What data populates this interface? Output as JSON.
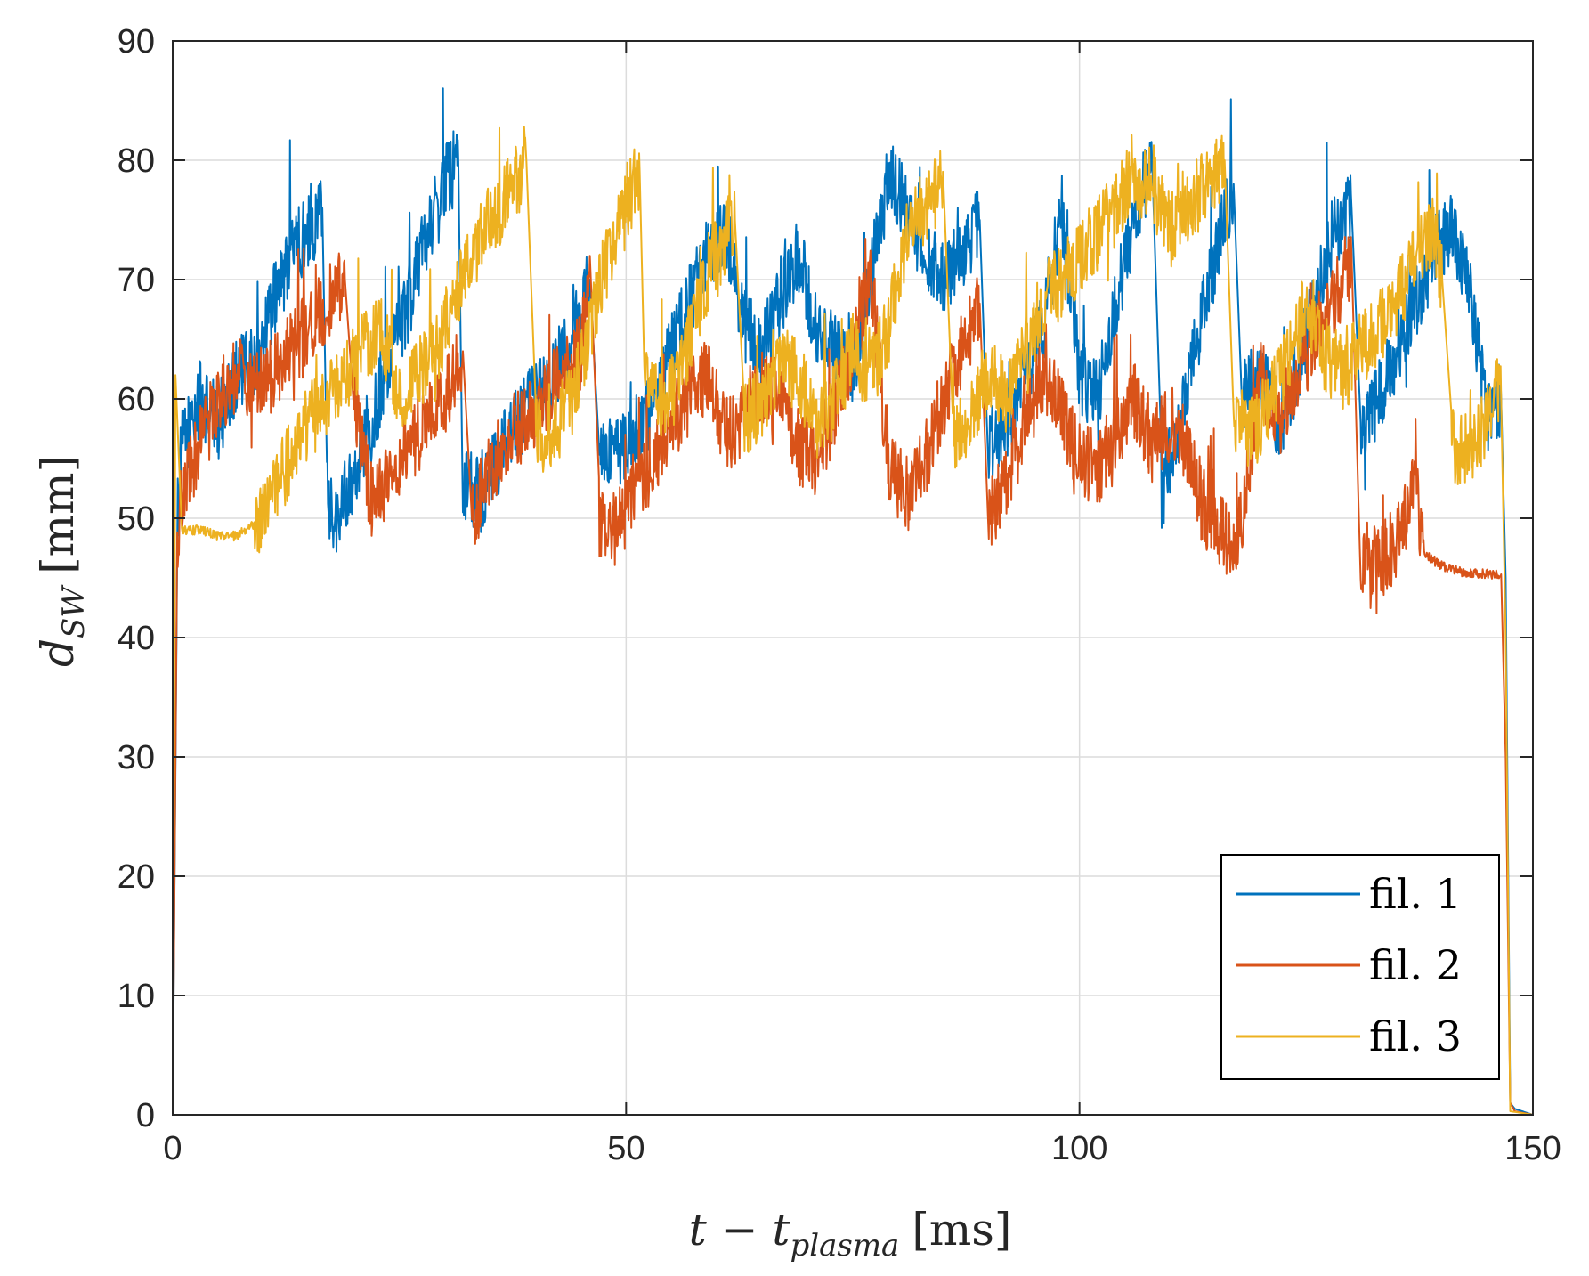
{
  "chart_data": {
    "type": "line",
    "xlabel": {
      "main": "t − t",
      "sub": "plasma",
      "unit": "[ms]"
    },
    "ylabel": {
      "main": "d",
      "sub": "SW",
      "unit": "[mm]"
    },
    "xlim": [
      0,
      150
    ],
    "ylim": [
      0,
      90
    ],
    "x_ticks": [
      0,
      50,
      100,
      150
    ],
    "y_ticks": [
      0,
      10,
      20,
      30,
      40,
      50,
      60,
      70,
      80,
      90
    ],
    "grid": true,
    "legend_position": "bottom-right",
    "series": [
      {
        "name": "fil. 1",
        "color": "#0072BD",
        "points": [
          [
            0,
            0
          ],
          [
            0.5,
            50
          ],
          [
            1,
            56
          ],
          [
            3,
            60
          ],
          [
            5,
            58
          ],
          [
            7,
            62
          ],
          [
            9,
            63
          ],
          [
            11,
            68
          ],
          [
            13,
            72
          ],
          [
            15,
            74
          ],
          [
            16.5,
            76
          ],
          [
            17,
            52
          ],
          [
            18,
            50
          ],
          [
            20,
            54
          ],
          [
            22,
            58
          ],
          [
            24,
            64
          ],
          [
            26,
            68
          ],
          [
            28,
            74
          ],
          [
            30,
            78
          ],
          [
            31.5,
            80
          ],
          [
            32,
            53
          ],
          [
            34,
            52
          ],
          [
            36,
            55
          ],
          [
            38,
            58
          ],
          [
            40,
            60
          ],
          [
            42,
            62
          ],
          [
            44,
            65
          ],
          [
            46,
            70
          ],
          [
            47,
            56
          ],
          [
            49,
            55
          ],
          [
            51,
            57
          ],
          [
            53,
            60
          ],
          [
            55,
            64
          ],
          [
            57,
            68
          ],
          [
            59,
            72
          ],
          [
            61,
            74
          ],
          [
            63,
            66
          ],
          [
            65,
            64
          ],
          [
            67,
            68
          ],
          [
            69,
            72
          ],
          [
            71,
            66
          ],
          [
            73,
            64
          ],
          [
            75,
            62
          ],
          [
            77,
            70
          ],
          [
            79,
            79
          ],
          [
            81,
            76
          ],
          [
            83,
            72
          ],
          [
            85,
            70
          ],
          [
            87,
            72
          ],
          [
            89,
            75
          ],
          [
            90,
            56
          ],
          [
            92,
            58
          ],
          [
            94,
            62
          ],
          [
            96,
            66
          ],
          [
            98,
            76
          ],
          [
            100,
            62
          ],
          [
            102,
            60
          ],
          [
            104,
            68
          ],
          [
            106,
            75
          ],
          [
            108,
            80
          ],
          [
            109,
            52
          ],
          [
            111,
            58
          ],
          [
            113,
            65
          ],
          [
            115,
            72
          ],
          [
            117,
            78
          ],
          [
            118,
            60
          ],
          [
            120,
            62
          ],
          [
            122,
            58
          ],
          [
            124,
            62
          ],
          [
            126,
            68
          ],
          [
            128,
            74
          ],
          [
            130,
            76
          ],
          [
            131,
            56
          ],
          [
            133,
            60
          ],
          [
            135,
            64
          ],
          [
            137,
            68
          ],
          [
            139,
            72
          ],
          [
            141,
            74
          ],
          [
            143,
            70
          ],
          [
            145,
            58
          ],
          [
            146.5,
            60
          ],
          [
            147,
            45
          ],
          [
            147.5,
            1
          ],
          [
            148,
            0.5
          ],
          [
            150,
            0
          ]
        ]
      },
      {
        "name": "fil. 2",
        "color": "#D95319",
        "points": [
          [
            0,
            0
          ],
          [
            0.5,
            48
          ],
          [
            1,
            52
          ],
          [
            3,
            56
          ],
          [
            5,
            60
          ],
          [
            7,
            62
          ],
          [
            9,
            61
          ],
          [
            11,
            62
          ],
          [
            13,
            64
          ],
          [
            15,
            66
          ],
          [
            17,
            68
          ],
          [
            19,
            70
          ],
          [
            20,
            60
          ],
          [
            22,
            51
          ],
          [
            24,
            54
          ],
          [
            26,
            56
          ],
          [
            28,
            58
          ],
          [
            30,
            60
          ],
          [
            32,
            64
          ],
          [
            33,
            50
          ],
          [
            35,
            54
          ],
          [
            37,
            57
          ],
          [
            39,
            58
          ],
          [
            41,
            60
          ],
          [
            43,
            62
          ],
          [
            45,
            64
          ],
          [
            46,
            72
          ],
          [
            47,
            50
          ],
          [
            49,
            49
          ],
          [
            51,
            52
          ],
          [
            53,
            55
          ],
          [
            55,
            58
          ],
          [
            57,
            60
          ],
          [
            59,
            62
          ],
          [
            61,
            57
          ],
          [
            63,
            58
          ],
          [
            65,
            61
          ],
          [
            67,
            60
          ],
          [
            69,
            56
          ],
          [
            71,
            55
          ],
          [
            73,
            59
          ],
          [
            75,
            64
          ],
          [
            77,
            70
          ],
          [
            79,
            54
          ],
          [
            81,
            52
          ],
          [
            83,
            55
          ],
          [
            85,
            60
          ],
          [
            87,
            64
          ],
          [
            89,
            68
          ],
          [
            90,
            50
          ],
          [
            92,
            53
          ],
          [
            94,
            58
          ],
          [
            96,
            62
          ],
          [
            98,
            59
          ],
          [
            100,
            55
          ],
          [
            102,
            54
          ],
          [
            104,
            57
          ],
          [
            106,
            60
          ],
          [
            108,
            56
          ],
          [
            110,
            58
          ],
          [
            112,
            56
          ],
          [
            113,
            52
          ],
          [
            115,
            49
          ],
          [
            117,
            48
          ],
          [
            118,
            50
          ],
          [
            120,
            62
          ],
          [
            122,
            58
          ],
          [
            124,
            62
          ],
          [
            126,
            65
          ],
          [
            128,
            68
          ],
          [
            130,
            72
          ],
          [
            131,
            47
          ],
          [
            133,
            46
          ],
          [
            135,
            48
          ],
          [
            136,
            50
          ],
          [
            137,
            53
          ],
          [
            138,
            47
          ],
          [
            140,
            46
          ],
          [
            142,
            45.5
          ],
          [
            145,
            45.3
          ],
          [
            146.5,
            45.3
          ],
          [
            147,
            30
          ],
          [
            147.5,
            1
          ],
          [
            148,
            0.3
          ],
          [
            150,
            0
          ]
        ]
      },
      {
        "name": "fil. 3",
        "color": "#EDB120",
        "points": [
          [
            0,
            0
          ],
          [
            0.3,
            62
          ],
          [
            1,
            49
          ],
          [
            3,
            49
          ],
          [
            5,
            48.5
          ],
          [
            7,
            48.5
          ],
          [
            9,
            49.5
          ],
          [
            11,
            52
          ],
          [
            13,
            55
          ],
          [
            15,
            58
          ],
          [
            17,
            60
          ],
          [
            19,
            62
          ],
          [
            21,
            64
          ],
          [
            23,
            66
          ],
          [
            25,
            60
          ],
          [
            27,
            62
          ],
          [
            29,
            64
          ],
          [
            31,
            68
          ],
          [
            33,
            72
          ],
          [
            35,
            75
          ],
          [
            37,
            77
          ],
          [
            39,
            80
          ],
          [
            40,
            57
          ],
          [
            42,
            57
          ],
          [
            44,
            60
          ],
          [
            46,
            66
          ],
          [
            48,
            72
          ],
          [
            50,
            76
          ],
          [
            51.5,
            79
          ],
          [
            52,
            62
          ],
          [
            54,
            59
          ],
          [
            56,
            62
          ],
          [
            58,
            68
          ],
          [
            60,
            72
          ],
          [
            62,
            75
          ],
          [
            63,
            58
          ],
          [
            65,
            60
          ],
          [
            67,
            63
          ],
          [
            69,
            62
          ],
          [
            71,
            58
          ],
          [
            73,
            60
          ],
          [
            75,
            64
          ],
          [
            77,
            62
          ],
          [
            79,
            66
          ],
          [
            81,
            74
          ],
          [
            83,
            76
          ],
          [
            85,
            78
          ],
          [
            86,
            56
          ],
          [
            88,
            59
          ],
          [
            90,
            62
          ],
          [
            92,
            60
          ],
          [
            94,
            64
          ],
          [
            96,
            68
          ],
          [
            98,
            70
          ],
          [
            100,
            72
          ],
          [
            102,
            74
          ],
          [
            104,
            76
          ],
          [
            106,
            78
          ],
          [
            108,
            78
          ],
          [
            110,
            74
          ],
          [
            112,
            76
          ],
          [
            114,
            78
          ],
          [
            116,
            80
          ],
          [
            117,
            58
          ],
          [
            119,
            57
          ],
          [
            121,
            60
          ],
          [
            123,
            63
          ],
          [
            125,
            68
          ],
          [
            127,
            64
          ],
          [
            129,
            62
          ],
          [
            131,
            64
          ],
          [
            133,
            66
          ],
          [
            135,
            68
          ],
          [
            137,
            72
          ],
          [
            139,
            74
          ],
          [
            140,
            70
          ],
          [
            141,
            56
          ],
          [
            143,
            56
          ],
          [
            145,
            58
          ],
          [
            146,
            62
          ],
          [
            146.5,
            60
          ],
          [
            147,
            40
          ],
          [
            147.5,
            0.3
          ],
          [
            150,
            0
          ]
        ]
      }
    ]
  }
}
